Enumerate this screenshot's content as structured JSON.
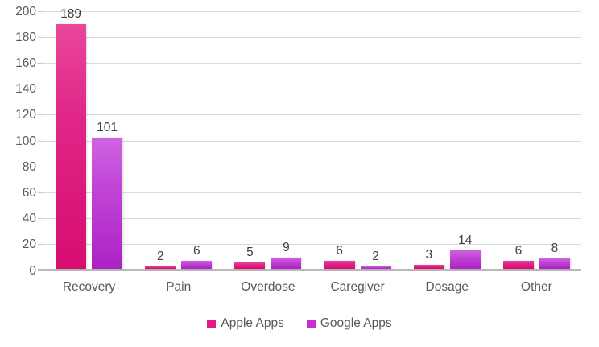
{
  "chart_data": {
    "type": "bar",
    "title": "",
    "categories": [
      "Recovery",
      "Pain",
      "Overdose",
      "Caregiver",
      "Dosage",
      "Other"
    ],
    "series": [
      {
        "name": "Apple Apps",
        "values": [
          189,
          2,
          5,
          6,
          3,
          6
        ],
        "legend_color": "#e6198a"
      },
      {
        "name": "Google Apps",
        "values": [
          101,
          6,
          9,
          2,
          14,
          8
        ],
        "legend_color": "#c92ed6"
      }
    ],
    "ylim": [
      0,
      200
    ],
    "ytick_step": 20,
    "yticks": [
      "0",
      "20",
      "40",
      "60",
      "80",
      "100",
      "120",
      "140",
      "160",
      "180",
      "200"
    ],
    "grid": true,
    "data_labels": true,
    "legend_position": "bottom"
  },
  "colors": {
    "background": "#ffffff",
    "gridline": "#d9d9d9",
    "baseline": "#b9b9b9",
    "axis_text": "#595959",
    "data_label_text": "#404040",
    "apple_bar_top": "#e8479b",
    "apple_bar_bottom": "#d70c70",
    "google_bar_top": "#ce64e2",
    "google_bar_bottom": "#ab22c5"
  }
}
